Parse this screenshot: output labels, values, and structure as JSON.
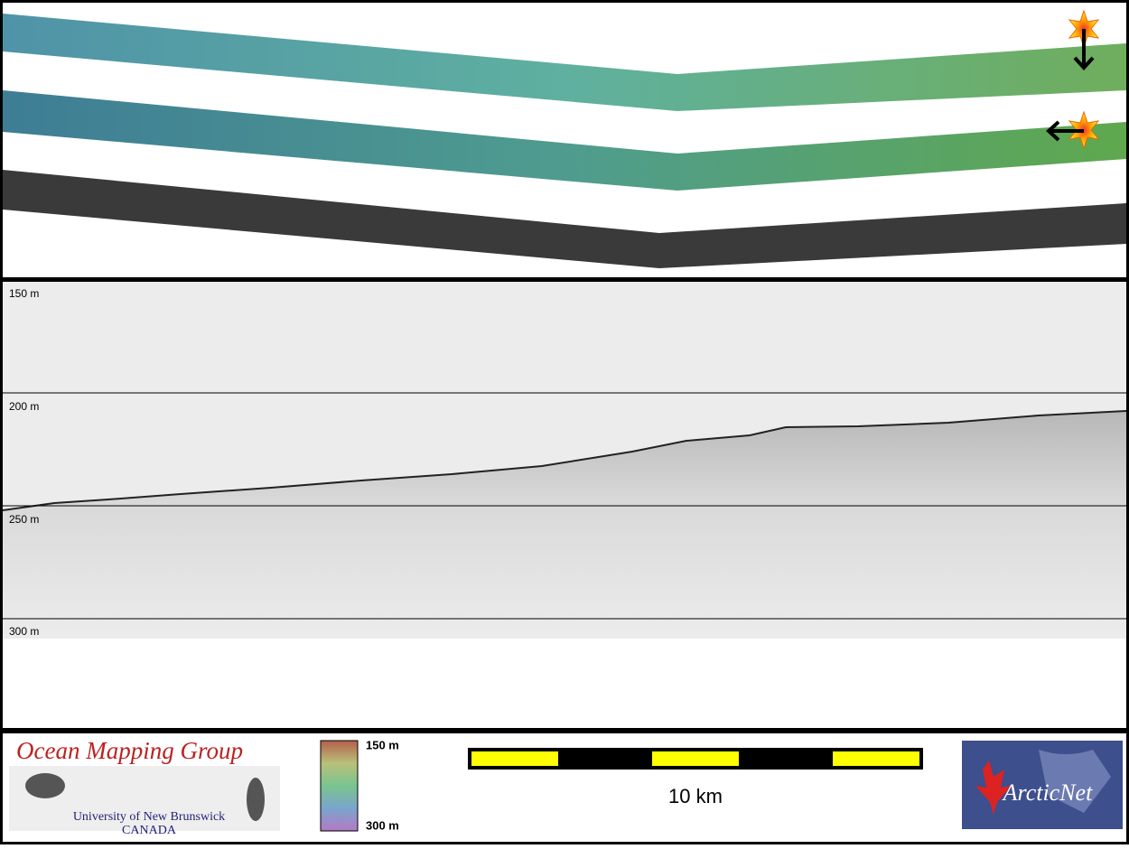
{
  "profile": {
    "depth_labels": [
      "150 m",
      "200 m",
      "250 m",
      "300 m"
    ]
  },
  "logo_left": {
    "title": "Ocean Mapping Group",
    "line1": "University of New Brunswick",
    "line2": "CANADA"
  },
  "colorbar": {
    "top_label": "150 m",
    "bottom_label": "300 m"
  },
  "scale_bar": {
    "label": "10 km"
  },
  "logo_right": {
    "title": "ArcticNet"
  }
}
